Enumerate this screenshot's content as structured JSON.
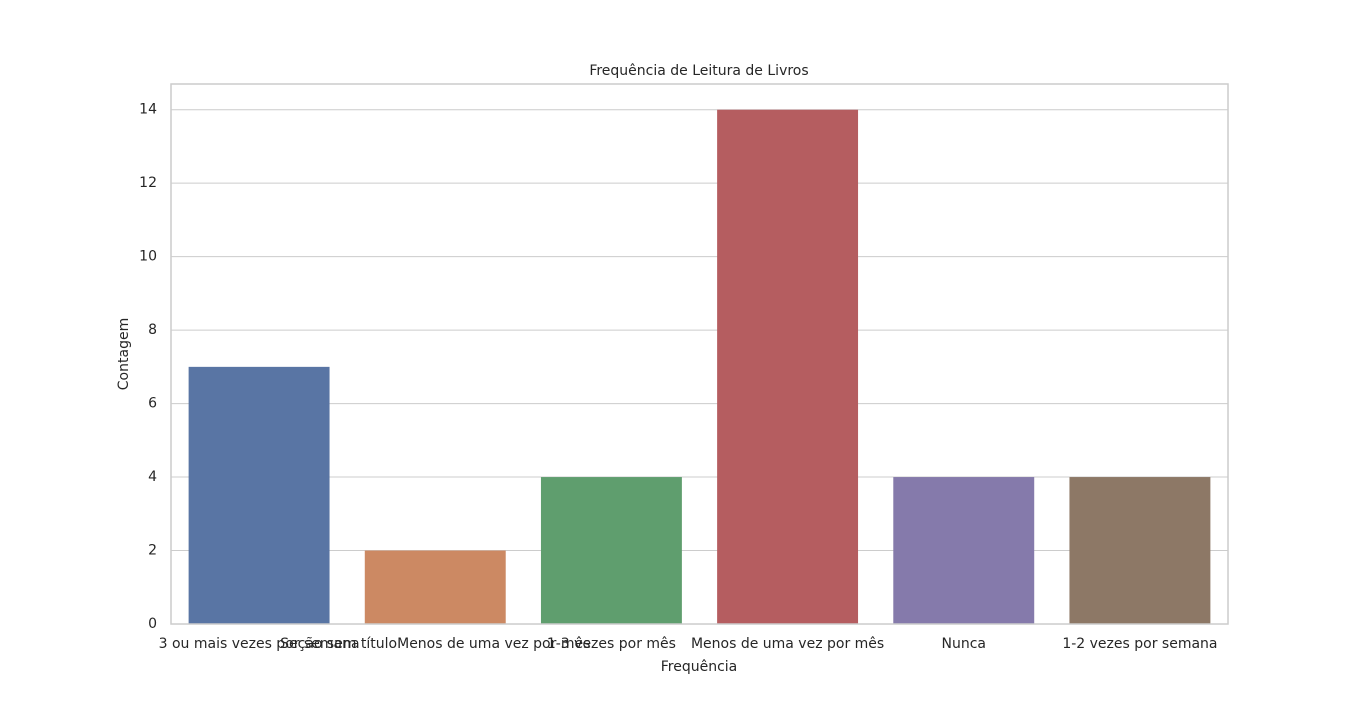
{
  "chart_data": {
    "type": "bar",
    "title": "Frequência de Leitura de Livros",
    "x_label": "Frequência",
    "y_label": "Contagem",
    "categories": [
      "3 ou mais vezes por semana",
      "Seção sem títuloMenos de uma vez por mês",
      "1-3 vezes por mês",
      "Menos de uma vez por mês",
      "Nunca",
      "1-2 vezes por semana"
    ],
    "values": [
      7,
      2,
      4,
      14,
      4,
      4
    ],
    "colors": [
      "#5975a4",
      "#cc8963",
      "#5f9e6e",
      "#b55d60",
      "#857aab",
      "#8d7866"
    ],
    "ylim": [
      0,
      14.7
    ],
    "yticks": [
      0,
      2,
      4,
      6,
      8,
      10,
      12,
      14
    ],
    "grid": true
  }
}
